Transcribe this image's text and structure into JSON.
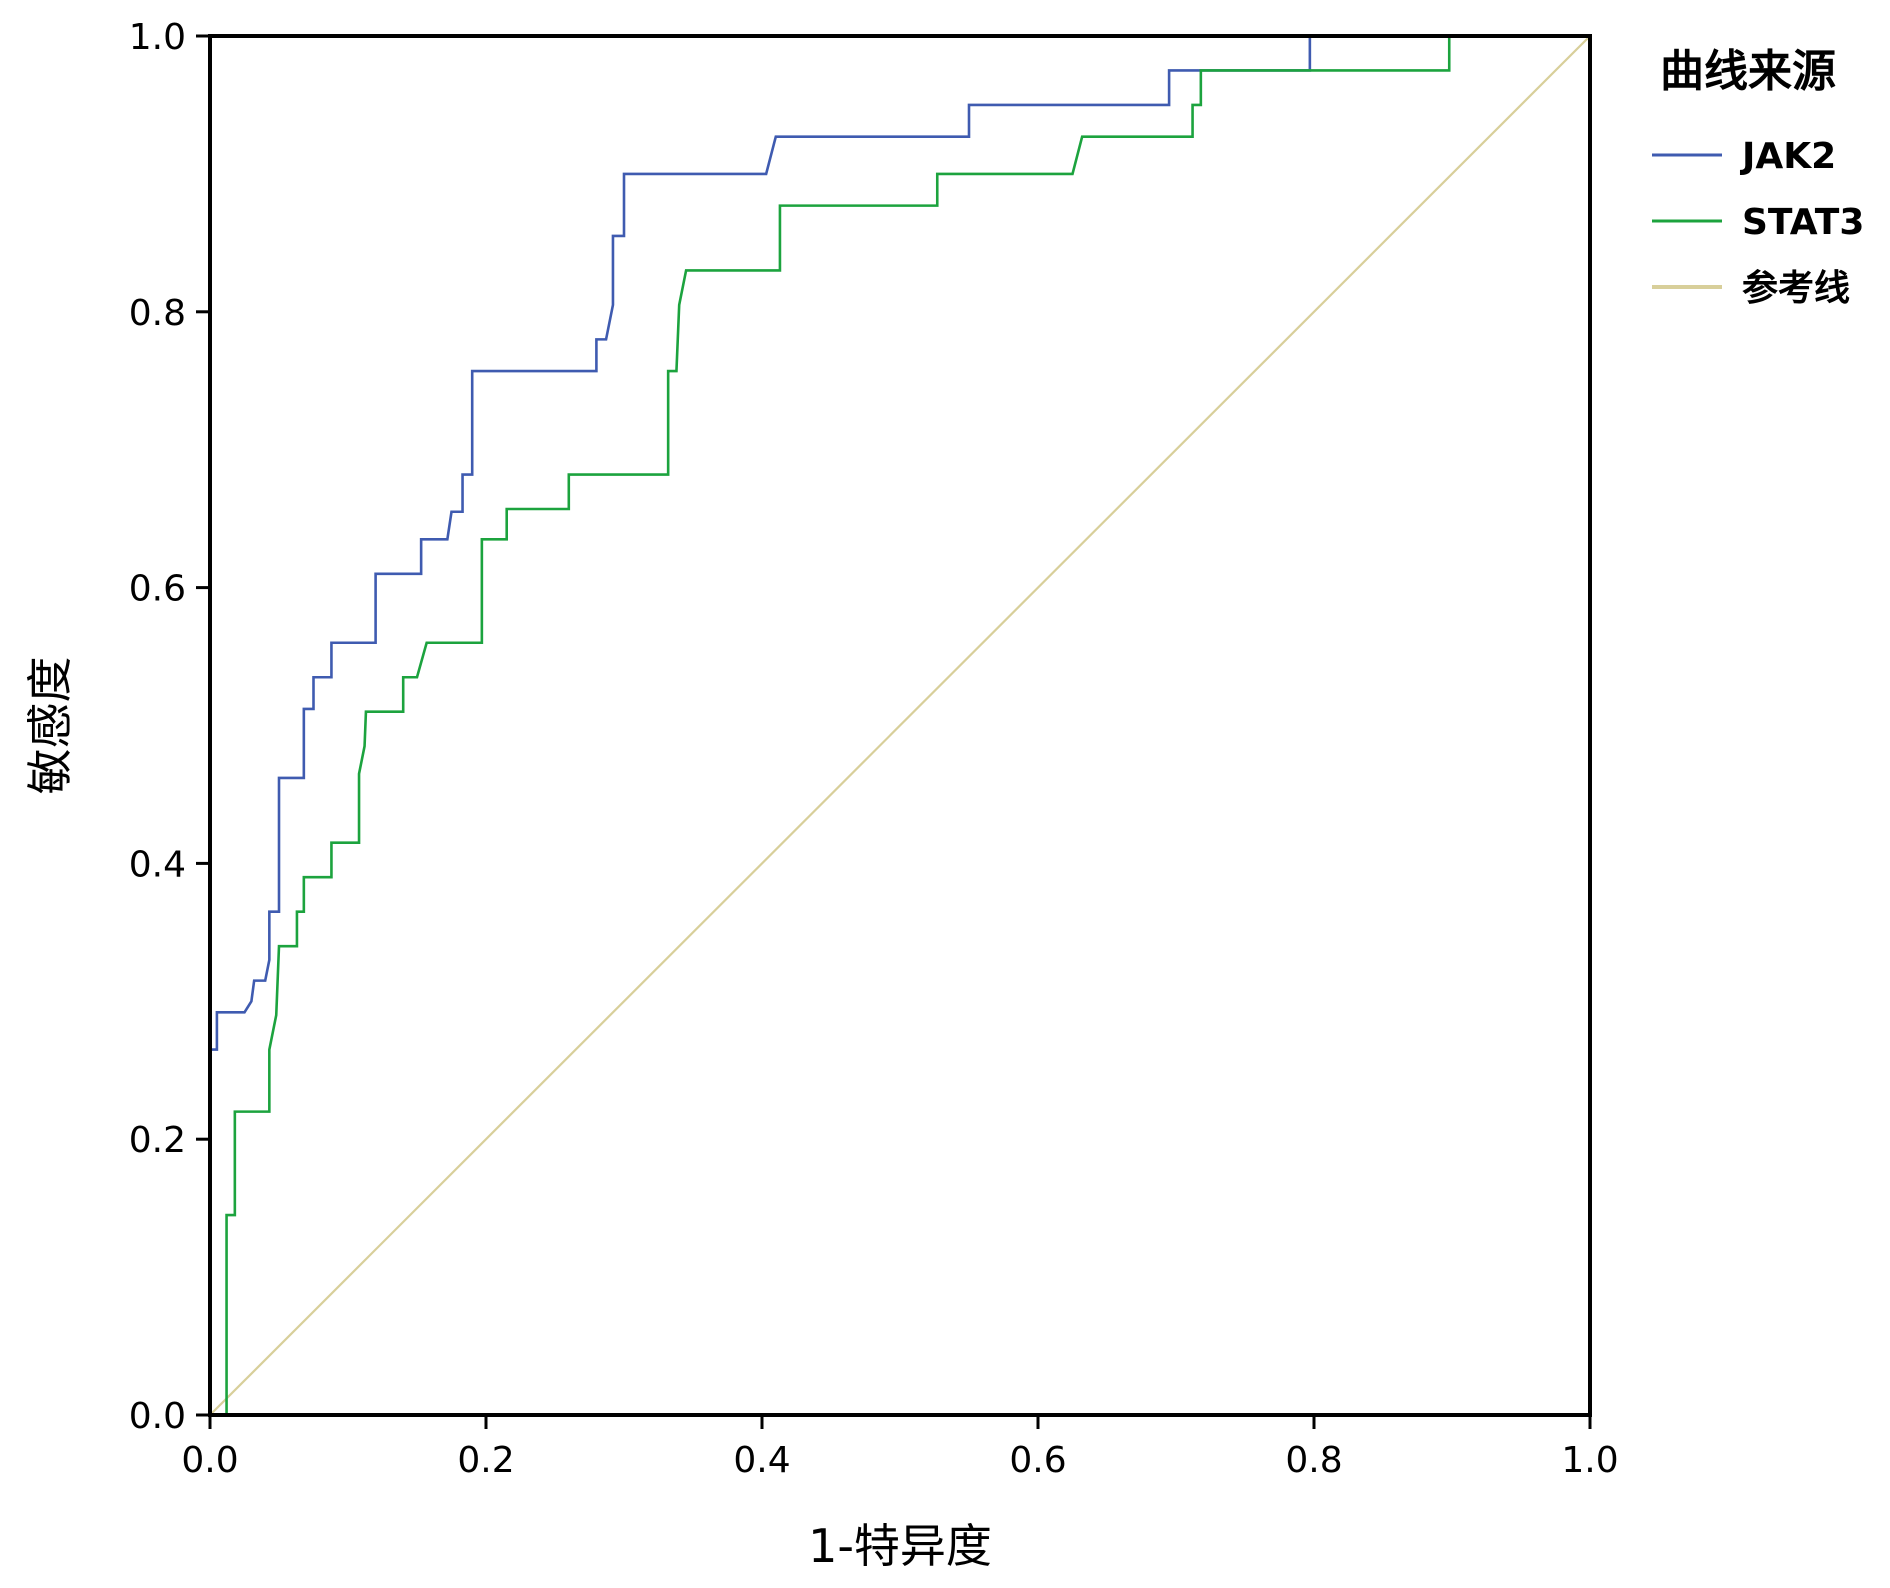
{
  "chart_data": {
    "type": "line",
    "xlabel": "1-特异度",
    "ylabel": "敏感度",
    "xlim": [
      0,
      1
    ],
    "ylim": [
      0,
      1
    ],
    "x_ticks": [
      "0.0",
      "0.2",
      "0.4",
      "0.6",
      "0.8",
      "1.0"
    ],
    "y_ticks": [
      "0.0",
      "0.2",
      "0.4",
      "0.6",
      "0.8",
      "1.0"
    ],
    "legend": {
      "title": "曲线来源",
      "placement": "right"
    },
    "grid": false,
    "series": [
      {
        "name": "JAK2",
        "color": "#3f5bb0",
        "step": true,
        "points": [
          [
            0.0,
            0.0
          ],
          [
            0.0,
            0.265
          ],
          [
            0.005,
            0.265
          ],
          [
            0.005,
            0.292
          ],
          [
            0.025,
            0.292
          ],
          [
            0.03,
            0.3
          ],
          [
            0.032,
            0.315
          ],
          [
            0.04,
            0.315
          ],
          [
            0.043,
            0.33
          ],
          [
            0.043,
            0.365
          ],
          [
            0.05,
            0.365
          ],
          [
            0.05,
            0.462
          ],
          [
            0.068,
            0.462
          ],
          [
            0.068,
            0.512
          ],
          [
            0.075,
            0.512
          ],
          [
            0.075,
            0.535
          ],
          [
            0.088,
            0.535
          ],
          [
            0.088,
            0.56
          ],
          [
            0.12,
            0.56
          ],
          [
            0.12,
            0.61
          ],
          [
            0.153,
            0.61
          ],
          [
            0.153,
            0.635
          ],
          [
            0.172,
            0.635
          ],
          [
            0.175,
            0.655
          ],
          [
            0.183,
            0.655
          ],
          [
            0.183,
            0.682
          ],
          [
            0.19,
            0.682
          ],
          [
            0.19,
            0.757
          ],
          [
            0.28,
            0.757
          ],
          [
            0.28,
            0.78
          ],
          [
            0.287,
            0.78
          ],
          [
            0.292,
            0.805
          ],
          [
            0.292,
            0.855
          ],
          [
            0.3,
            0.855
          ],
          [
            0.3,
            0.9
          ],
          [
            0.403,
            0.9
          ],
          [
            0.41,
            0.927
          ],
          [
            0.55,
            0.927
          ],
          [
            0.55,
            0.95
          ],
          [
            0.695,
            0.95
          ],
          [
            0.695,
            0.975
          ],
          [
            0.797,
            0.975
          ],
          [
            0.797,
            1.0
          ],
          [
            1.0,
            1.0
          ]
        ]
      },
      {
        "name": "STAT3",
        "color": "#1ca33e",
        "step": true,
        "points": [
          [
            0.0,
            0.0
          ],
          [
            0.012,
            0.0
          ],
          [
            0.012,
            0.145
          ],
          [
            0.018,
            0.145
          ],
          [
            0.018,
            0.22
          ],
          [
            0.043,
            0.22
          ],
          [
            0.043,
            0.265
          ],
          [
            0.048,
            0.29
          ],
          [
            0.05,
            0.34
          ],
          [
            0.063,
            0.34
          ],
          [
            0.063,
            0.365
          ],
          [
            0.068,
            0.365
          ],
          [
            0.068,
            0.39
          ],
          [
            0.088,
            0.39
          ],
          [
            0.088,
            0.415
          ],
          [
            0.108,
            0.415
          ],
          [
            0.108,
            0.465
          ],
          [
            0.112,
            0.485
          ],
          [
            0.113,
            0.51
          ],
          [
            0.14,
            0.51
          ],
          [
            0.14,
            0.535
          ],
          [
            0.15,
            0.535
          ],
          [
            0.157,
            0.56
          ],
          [
            0.197,
            0.56
          ],
          [
            0.197,
            0.635
          ],
          [
            0.215,
            0.635
          ],
          [
            0.215,
            0.657
          ],
          [
            0.26,
            0.657
          ],
          [
            0.26,
            0.682
          ],
          [
            0.332,
            0.682
          ],
          [
            0.332,
            0.757
          ],
          [
            0.338,
            0.757
          ],
          [
            0.34,
            0.805
          ],
          [
            0.345,
            0.83
          ],
          [
            0.413,
            0.83
          ],
          [
            0.413,
            0.877
          ],
          [
            0.527,
            0.877
          ],
          [
            0.527,
            0.9
          ],
          [
            0.625,
            0.9
          ],
          [
            0.632,
            0.927
          ],
          [
            0.712,
            0.927
          ],
          [
            0.712,
            0.95
          ],
          [
            0.718,
            0.95
          ],
          [
            0.718,
            0.975
          ],
          [
            0.898,
            0.975
          ],
          [
            0.898,
            1.0
          ],
          [
            1.0,
            1.0
          ]
        ]
      },
      {
        "name": "参考线",
        "color": "#d8cf9a",
        "step": false,
        "points": [
          [
            0.0,
            0.0
          ],
          [
            1.0,
            1.0
          ]
        ]
      }
    ]
  }
}
